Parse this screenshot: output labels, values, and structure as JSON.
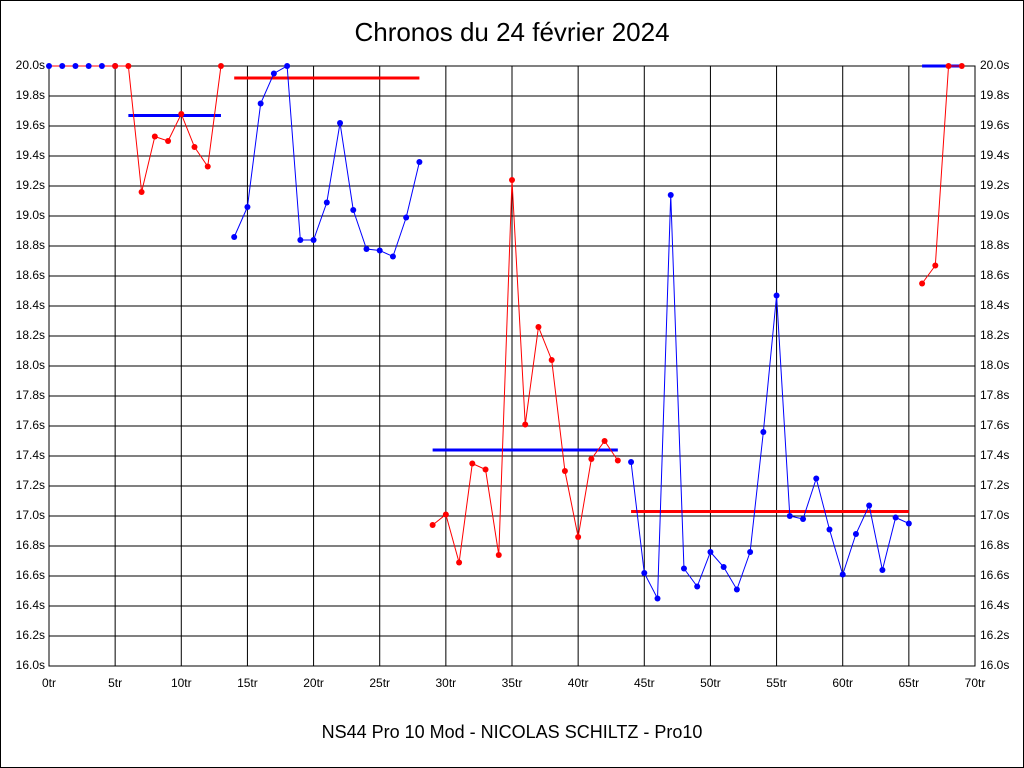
{
  "chart_data": {
    "type": "line",
    "title": "Chronos du 24 février 2024",
    "footer": "NS44 Pro 10 Mod - NICOLAS SCHILTZ - Pro10",
    "xlim": [
      0,
      70
    ],
    "xticks": [
      {
        "value": 0,
        "label": "0tr"
      },
      {
        "value": 5,
        "label": "5tr"
      },
      {
        "value": 10,
        "label": "10tr"
      },
      {
        "value": 15,
        "label": "15tr"
      },
      {
        "value": 20,
        "label": "20tr"
      },
      {
        "value": 25,
        "label": "25tr"
      },
      {
        "value": 30,
        "label": "30tr"
      },
      {
        "value": 35,
        "label": "35tr"
      },
      {
        "value": 40,
        "label": "40tr"
      },
      {
        "value": 45,
        "label": "45tr"
      },
      {
        "value": 50,
        "label": "50tr"
      },
      {
        "value": 55,
        "label": "55tr"
      },
      {
        "value": 60,
        "label": "60tr"
      },
      {
        "value": 65,
        "label": "65tr"
      },
      {
        "value": 70,
        "label": "70tr"
      }
    ],
    "ylim": [
      16,
      20
    ],
    "yticks": [
      {
        "value": 16,
        "label": "16.0s"
      },
      {
        "value": 16.2,
        "label": "16.2s"
      },
      {
        "value": 16.4,
        "label": "16.4s"
      },
      {
        "value": 16.6,
        "label": "16.6s"
      },
      {
        "value": 16.8,
        "label": "16.8s"
      },
      {
        "value": 17,
        "label": "17.0s"
      },
      {
        "value": 17.2,
        "label": "17.2s"
      },
      {
        "value": 17.4,
        "label": "17.4s"
      },
      {
        "value": 17.6,
        "label": "17.6s"
      },
      {
        "value": 17.8,
        "label": "17.8s"
      },
      {
        "value": 18,
        "label": "18.0s"
      },
      {
        "value": 18.2,
        "label": "18.2s"
      },
      {
        "value": 18.4,
        "label": "18.4s"
      },
      {
        "value": 18.6,
        "label": "18.6s"
      },
      {
        "value": 18.8,
        "label": "18.8s"
      },
      {
        "value": 19,
        "label": "19.0s"
      },
      {
        "value": 19.2,
        "label": "19.2s"
      },
      {
        "value": 19.4,
        "label": "19.4s"
      },
      {
        "value": 19.6,
        "label": "19.6s"
      },
      {
        "value": 19.8,
        "label": "19.8s"
      },
      {
        "value": 20,
        "label": "20.0s"
      }
    ],
    "grid": true,
    "series": [
      {
        "color": "#ff0000",
        "marker_color": "#0000ff",
        "x": [
          0,
          1,
          2,
          3,
          4,
          5
        ],
        "values": [
          20,
          20,
          20,
          20,
          20,
          20
        ]
      },
      {
        "color": "#ff0000",
        "x": [
          5,
          6,
          7,
          8,
          9,
          10,
          11,
          12,
          13
        ],
        "values": [
          20,
          20,
          19.16,
          19.53,
          19.5,
          19.68,
          19.46,
          19.33,
          20
        ]
      },
      {
        "color": "#0000ff",
        "x": [
          14,
          15,
          16,
          17,
          18,
          19,
          20,
          21,
          22,
          23,
          24,
          25,
          26,
          27,
          28
        ],
        "values": [
          18.86,
          19.06,
          19.75,
          19.95,
          20,
          18.84,
          18.84,
          19.09,
          19.62,
          19.04,
          18.78,
          18.77,
          18.73,
          18.99,
          19.36
        ]
      },
      {
        "color": "#ff0000",
        "x": [
          29,
          30,
          31,
          32,
          33,
          34,
          35,
          36,
          37,
          38,
          39,
          40,
          41,
          42,
          43
        ],
        "values": [
          16.94,
          17.01,
          16.69,
          17.35,
          17.31,
          16.74,
          19.24,
          17.61,
          18.26,
          18.04,
          17.3,
          16.86,
          17.38,
          17.5,
          17.37
        ]
      },
      {
        "color": "#0000ff",
        "x": [
          44,
          45,
          46,
          47,
          48,
          49,
          50,
          51,
          52,
          53,
          54,
          55,
          56,
          57,
          58,
          59,
          60,
          61,
          62,
          63,
          64,
          65
        ],
        "values": [
          17.36,
          16.62,
          16.45,
          19.14,
          16.65,
          16.53,
          16.76,
          16.66,
          16.51,
          16.76,
          17.56,
          18.47,
          17,
          16.98,
          17.25,
          16.91,
          16.61,
          16.88,
          17.07,
          16.64,
          16.99,
          16.95
        ]
      },
      {
        "color": "#ff0000",
        "x": [
          66,
          67,
          68,
          69
        ],
        "values": [
          18.55,
          18.67,
          20,
          20
        ]
      }
    ],
    "averages": [
      {
        "color": "#0000ff",
        "from": 6,
        "to": 13,
        "value": 19.67
      },
      {
        "color": "#ff0000",
        "from": 14,
        "to": 28,
        "value": 19.92
      },
      {
        "color": "#0000ff",
        "from": 29,
        "to": 43,
        "value": 17.44
      },
      {
        "color": "#ff0000",
        "from": 44,
        "to": 65,
        "value": 17.03
      },
      {
        "color": "#0000ff",
        "from": 66,
        "to": 69,
        "value": 20
      }
    ]
  }
}
